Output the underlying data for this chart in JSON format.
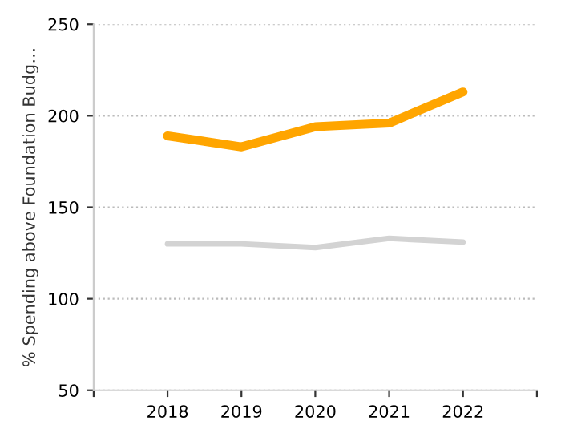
{
  "chart_data": {
    "type": "line",
    "ylabel": "% Spending above Foundation Budg…",
    "x": [
      2018,
      2019,
      2020,
      2021,
      2022
    ],
    "series": [
      {
        "color": "#ffa500",
        "values": [
          189,
          183,
          194,
          196,
          213
        ]
      },
      {
        "color": "#d3d3d3",
        "values": [
          130,
          130,
          128,
          133,
          131
        ]
      }
    ],
    "xlim": [
      2017,
      2023
    ],
    "xticks": [
      {
        "value": 2017,
        "label": null
      },
      2018,
      2019,
      2020,
      2021,
      2022,
      {
        "value": 2023,
        "label": null
      }
    ],
    "ylim": [
      50,
      250
    ],
    "yticks": [
      50,
      100,
      150,
      200,
      250
    ],
    "grid": "y",
    "marker": "none",
    "line_style": "solid"
  }
}
